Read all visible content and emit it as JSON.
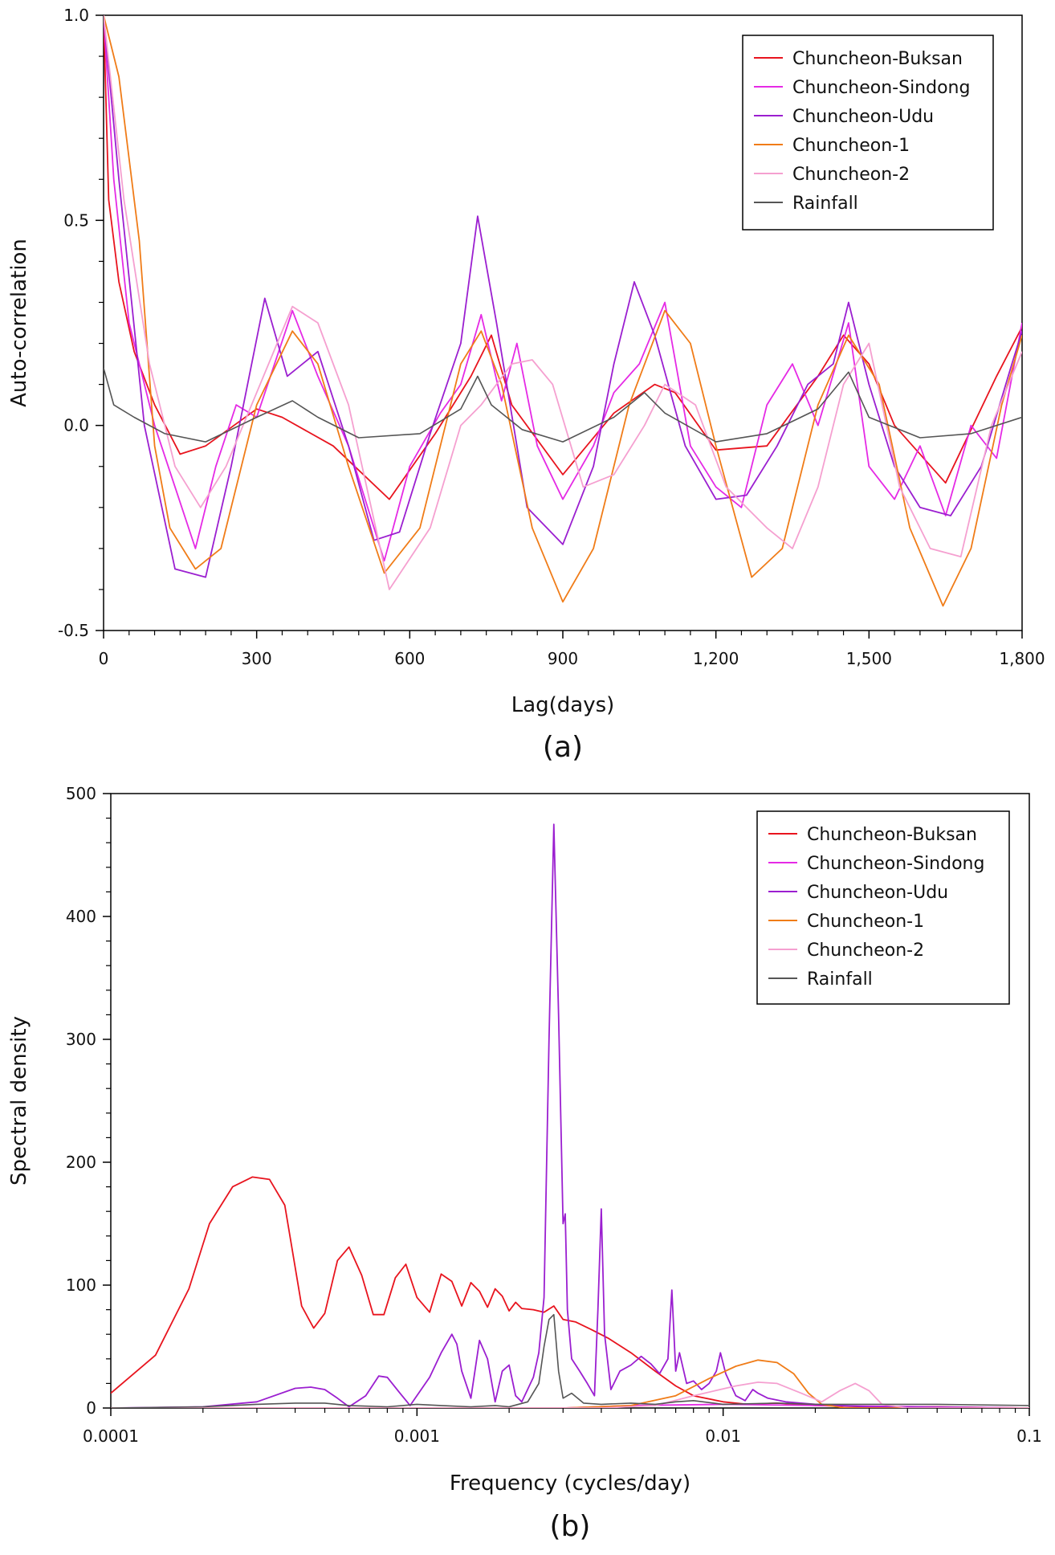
{
  "chart_data": [
    {
      "type": "line",
      "panel_label": "(a)",
      "title": "",
      "xlabel": "Lag(days)",
      "ylabel": "Auto-correlation",
      "xlim": [
        0,
        1800
      ],
      "ylim": [
        -0.5,
        1.0
      ],
      "x_ticks": [
        0,
        300,
        600,
        900,
        1200,
        1500,
        1800
      ],
      "x_tick_labels": [
        "0",
        "300",
        "600",
        "900",
        "1,200",
        "1,500",
        "1,800"
      ],
      "y_ticks": [
        -0.5,
        0.0,
        0.5,
        1.0
      ],
      "y_tick_labels": [
        "-0.5",
        "0.0",
        "0.5",
        "1.0"
      ],
      "legend_position": "top-right",
      "series": [
        {
          "name": "Chuncheon-Buksan",
          "color": "#e8141e",
          "x": [
            0,
            10,
            30,
            60,
            100,
            150,
            200,
            300,
            350,
            450,
            560,
            650,
            720,
            760,
            800,
            900,
            1000,
            1080,
            1120,
            1200,
            1300,
            1400,
            1450,
            1500,
            1550,
            1650,
            1750,
            1800
          ],
          "y": [
            1.0,
            0.55,
            0.35,
            0.18,
            0.05,
            -0.07,
            -0.05,
            0.04,
            0.02,
            -0.05,
            -0.18,
            -0.02,
            0.12,
            0.22,
            0.05,
            -0.12,
            0.03,
            0.1,
            0.08,
            -0.06,
            -0.05,
            0.12,
            0.22,
            0.15,
            0.0,
            -0.14,
            0.12,
            0.24
          ]
        },
        {
          "name": "Chuncheon-Sindong",
          "color": "#e52ae5",
          "x": [
            0,
            20,
            50,
            100,
            140,
            180,
            220,
            260,
            300,
            370,
            420,
            480,
            550,
            600,
            660,
            700,
            740,
            780,
            810,
            850,
            900,
            960,
            1000,
            1050,
            1100,
            1150,
            1200,
            1250,
            1300,
            1350,
            1400,
            1460,
            1500,
            1550,
            1600,
            1650,
            1700,
            1750,
            1800
          ],
          "y": [
            1.0,
            0.6,
            0.25,
            0.0,
            -0.15,
            -0.3,
            -0.1,
            0.05,
            0.02,
            0.28,
            0.12,
            -0.05,
            -0.33,
            -0.1,
            0.03,
            0.1,
            0.27,
            0.06,
            0.2,
            -0.05,
            -0.18,
            -0.05,
            0.08,
            0.15,
            0.3,
            -0.05,
            -0.15,
            -0.2,
            0.05,
            0.15,
            0.0,
            0.25,
            -0.1,
            -0.18,
            -0.05,
            -0.22,
            0.0,
            -0.08,
            0.25
          ]
        },
        {
          "name": "Chuncheon-Udu",
          "color": "#9b1fd0",
          "x": [
            0,
            30,
            80,
            140,
            200,
            250,
            316,
            360,
            420,
            480,
            530,
            580,
            640,
            700,
            733,
            770,
            830,
            900,
            960,
            1000,
            1040,
            1080,
            1140,
            1200,
            1260,
            1320,
            1380,
            1430,
            1460,
            1500,
            1550,
            1600,
            1660,
            1720,
            1780,
            1800
          ],
          "y": [
            1.0,
            0.6,
            0.0,
            -0.35,
            -0.37,
            -0.1,
            0.31,
            0.12,
            0.18,
            -0.05,
            -0.28,
            -0.26,
            -0.02,
            0.2,
            0.51,
            0.25,
            -0.2,
            -0.29,
            -0.1,
            0.15,
            0.35,
            0.22,
            -0.05,
            -0.18,
            -0.17,
            -0.05,
            0.1,
            0.15,
            0.3,
            0.1,
            -0.1,
            -0.2,
            -0.22,
            -0.1,
            0.15,
            0.23
          ]
        },
        {
          "name": "Chuncheon-1",
          "color": "#f07c18",
          "x": [
            0,
            30,
            70,
            100,
            130,
            180,
            230,
            300,
            370,
            420,
            480,
            550,
            620,
            700,
            740,
            780,
            840,
            900,
            960,
            1030,
            1100,
            1150,
            1200,
            1270,
            1330,
            1400,
            1460,
            1520,
            1580,
            1645,
            1700,
            1760,
            1800
          ],
          "y": [
            1.0,
            0.85,
            0.45,
            -0.05,
            -0.25,
            -0.35,
            -0.3,
            0.05,
            0.23,
            0.15,
            -0.1,
            -0.36,
            -0.25,
            0.15,
            0.23,
            0.1,
            -0.25,
            -0.43,
            -0.3,
            0.05,
            0.28,
            0.2,
            -0.05,
            -0.37,
            -0.3,
            0.05,
            0.22,
            0.1,
            -0.25,
            -0.44,
            -0.3,
            0.05,
            0.22
          ]
        },
        {
          "name": "Chuncheon-2",
          "color": "#f5a0d0",
          "x": [
            0,
            40,
            90,
            140,
            190,
            240,
            300,
            370,
            420,
            480,
            560,
            640,
            700,
            740,
            800,
            840,
            880,
            940,
            1000,
            1060,
            1100,
            1160,
            1220,
            1300,
            1350,
            1400,
            1450,
            1500,
            1560,
            1620,
            1680,
            1740,
            1800
          ],
          "y": [
            1.0,
            0.55,
            0.15,
            -0.1,
            -0.2,
            -0.1,
            0.08,
            0.29,
            0.25,
            0.05,
            -0.4,
            -0.25,
            0.0,
            0.05,
            0.15,
            0.16,
            0.1,
            -0.15,
            -0.12,
            0.0,
            0.1,
            0.05,
            -0.15,
            -0.25,
            -0.3,
            -0.15,
            0.1,
            0.2,
            -0.15,
            -0.3,
            -0.32,
            0.0,
            0.18
          ]
        },
        {
          "name": "Rainfall",
          "color": "#555555",
          "x": [
            0,
            20,
            60,
            120,
            200,
            300,
            370,
            420,
            500,
            620,
            700,
            733,
            760,
            820,
            900,
            1000,
            1060,
            1100,
            1200,
            1300,
            1400,
            1460,
            1500,
            1600,
            1700,
            1800
          ],
          "y": [
            0.14,
            0.05,
            0.02,
            -0.02,
            -0.04,
            0.02,
            0.06,
            0.02,
            -0.03,
            -0.02,
            0.04,
            0.12,
            0.05,
            -0.01,
            -0.04,
            0.02,
            0.08,
            0.03,
            -0.04,
            -0.02,
            0.04,
            0.13,
            0.02,
            -0.03,
            -0.02,
            0.02
          ]
        }
      ]
    },
    {
      "type": "line",
      "panel_label": "(b)",
      "title": "",
      "xlabel": "Frequency (cycles/day)",
      "ylabel": "Spectral density",
      "xscale": "log",
      "xlim": [
        0.0001,
        0.1
      ],
      "ylim": [
        0,
        500
      ],
      "x_ticks": [
        0.0001,
        0.001,
        0.01,
        0.1
      ],
      "x_tick_labels": [
        "0.0001",
        "0.001",
        "0.01",
        "0.1"
      ],
      "y_ticks": [
        0,
        100,
        200,
        300,
        400,
        500
      ],
      "y_tick_labels": [
        "0",
        "100",
        "200",
        "300",
        "400",
        "500"
      ],
      "legend_position": "top-right",
      "series": [
        {
          "name": "Chuncheon-Buksan",
          "color": "#e8141e",
          "x": [
            0.0001,
            0.00014,
            0.00018,
            0.00021,
            0.00025,
            0.00029,
            0.00033,
            0.00037,
            0.00042,
            0.00046,
            0.0005,
            0.00055,
            0.0006,
            0.00066,
            0.00072,
            0.00078,
            0.00085,
            0.00092,
            0.001,
            0.0011,
            0.0012,
            0.0013,
            0.0014,
            0.0015,
            0.0016,
            0.0017,
            0.0018,
            0.0019,
            0.002,
            0.0021,
            0.0022,
            0.0024,
            0.0026,
            0.0028,
            0.003,
            0.0033,
            0.0037,
            0.0042,
            0.005,
            0.006,
            0.007,
            0.008,
            0.01,
            0.012,
            0.015,
            0.02,
            0.03,
            0.05,
            0.1
          ],
          "y": [
            12,
            43,
            97,
            150,
            180,
            188,
            186,
            165,
            83,
            65,
            77,
            120,
            131,
            108,
            76,
            76,
            106,
            117,
            90,
            78,
            109,
            103,
            83,
            102,
            95,
            82,
            97,
            91,
            79,
            86,
            81,
            80,
            78,
            83,
            72,
            70,
            64,
            57,
            45,
            30,
            18,
            10,
            5,
            3,
            4,
            2,
            1,
            1,
            0
          ]
        },
        {
          "name": "Chuncheon-Sindong",
          "color": "#e52ae5",
          "x": [
            0.0001,
            0.001,
            0.003,
            0.005,
            0.01,
            0.02,
            0.1
          ],
          "y": [
            0,
            0,
            0,
            2,
            3,
            2,
            0
          ]
        },
        {
          "name": "Chuncheon-Udu",
          "color": "#9b1fd0",
          "x": [
            0.0001,
            0.0002,
            0.0003,
            0.0004,
            0.00045,
            0.0005,
            0.00055,
            0.0006,
            0.00068,
            0.00075,
            0.0008,
            0.00088,
            0.00095,
            0.0011,
            0.0012,
            0.0013,
            0.00135,
            0.0014,
            0.0015,
            0.0016,
            0.0017,
            0.0018,
            0.0019,
            0.002,
            0.0021,
            0.0022,
            0.0024,
            0.0025,
            0.0026,
            0.0027,
            0.0028,
            0.0029,
            0.003,
            0.00305,
            0.0031,
            0.0032,
            0.0034,
            0.0036,
            0.0038,
            0.0039,
            0.004,
            0.0041,
            0.0043,
            0.0046,
            0.005,
            0.0054,
            0.0058,
            0.0062,
            0.0066,
            0.0068,
            0.007,
            0.0072,
            0.0076,
            0.008,
            0.0085,
            0.009,
            0.0095,
            0.0098,
            0.0102,
            0.011,
            0.0118,
            0.0125,
            0.013,
            0.014,
            0.016,
            0.02,
            0.03,
            0.1
          ],
          "y": [
            0,
            1,
            5,
            16,
            17,
            15,
            8,
            1,
            10,
            26,
            25,
            12,
            2,
            25,
            45,
            60,
            52,
            30,
            8,
            55,
            40,
            5,
            30,
            35,
            10,
            5,
            25,
            45,
            90,
            300,
            475,
            320,
            150,
            158,
            80,
            40,
            30,
            20,
            10,
            80,
            162,
            60,
            15,
            30,
            35,
            42,
            36,
            28,
            40,
            96,
            30,
            45,
            20,
            22,
            15,
            20,
            30,
            45,
            28,
            10,
            6,
            15,
            12,
            8,
            5,
            3,
            1,
            0
          ]
        },
        {
          "name": "Chuncheon-1",
          "color": "#f07c18",
          "x": [
            0.0001,
            0.003,
            0.005,
            0.007,
            0.009,
            0.011,
            0.013,
            0.015,
            0.017,
            0.019,
            0.021,
            0.025,
            0.1
          ],
          "y": [
            0,
            0,
            2,
            10,
            24,
            34,
            39,
            37,
            28,
            12,
            3,
            0,
            0
          ]
        },
        {
          "name": "Chuncheon-2",
          "color": "#f5a0d0",
          "x": [
            0.0001,
            0.004,
            0.006,
            0.008,
            0.011,
            0.013,
            0.015,
            0.018,
            0.021,
            0.024,
            0.027,
            0.03,
            0.033,
            0.04,
            0.1
          ],
          "y": [
            0,
            0,
            2,
            10,
            18,
            21,
            20,
            12,
            5,
            14,
            20,
            14,
            3,
            0,
            0
          ]
        },
        {
          "name": "Rainfall",
          "color": "#555555",
          "x": [
            0.0001,
            0.0002,
            0.0003,
            0.0004,
            0.0005,
            0.0006,
            0.0008,
            0.001,
            0.0012,
            0.0015,
            0.0018,
            0.002,
            0.0023,
            0.0025,
            0.0026,
            0.0027,
            0.0028,
            0.0029,
            0.003,
            0.0032,
            0.0035,
            0.004,
            0.005,
            0.006,
            0.007,
            0.008,
            0.01,
            0.015,
            0.02,
            0.03,
            0.05,
            0.1
          ],
          "y": [
            0,
            1,
            3,
            4,
            4,
            2,
            1,
            3,
            2,
            1,
            2,
            1,
            5,
            20,
            50,
            72,
            76,
            30,
            8,
            12,
            4,
            3,
            4,
            3,
            5,
            6,
            3,
            4,
            3,
            3,
            3,
            2
          ]
        }
      ]
    }
  ]
}
